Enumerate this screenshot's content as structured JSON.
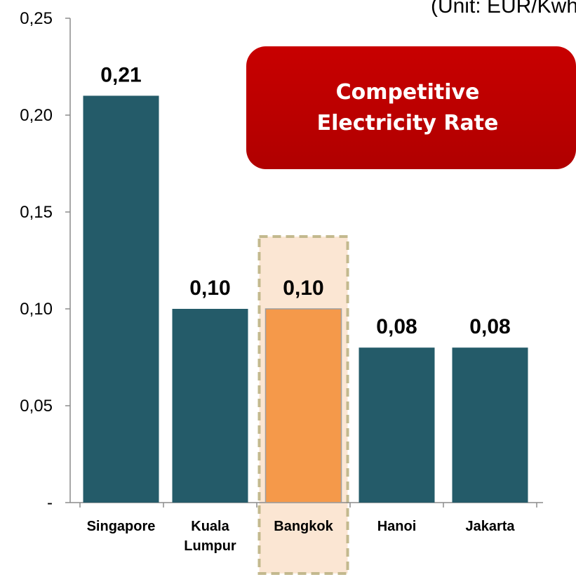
{
  "chart_data": {
    "type": "bar",
    "unit_label": "(Unit: EUR/Kwh)",
    "categories": [
      [
        "Singapore"
      ],
      [
        "Kuala",
        "Lumpur"
      ],
      [
        "Bangkok"
      ],
      [
        "Hanoi"
      ],
      [
        "Jakarta"
      ]
    ],
    "values": [
      0.21,
      0.1,
      0.1,
      0.08,
      0.08
    ],
    "data_labels": [
      "0,21",
      "0,10",
      "0,10",
      "0,08",
      "0,08"
    ],
    "ylim": [
      0,
      0.25
    ],
    "y_ticks": [
      0,
      0.05,
      0.1,
      0.15,
      0.2,
      0.25
    ],
    "y_tick_labels": [
      "-",
      "0,05",
      "0,10",
      "0,15",
      "0,20",
      "0,25"
    ],
    "highlight_index": 2,
    "colors": {
      "bar": "#245b69",
      "highlight_bar": "#f5994a",
      "highlight_bar_border": "#9e9e9e",
      "highlight_box_fill": "#fbe6d3",
      "highlight_box_border": "#c3b98e",
      "axis": "#8c8c8c",
      "callout": "#c00000"
    },
    "grid": false,
    "legend": "none"
  },
  "callout": {
    "line1": "Competitive",
    "line2": "Electricity Rate"
  }
}
